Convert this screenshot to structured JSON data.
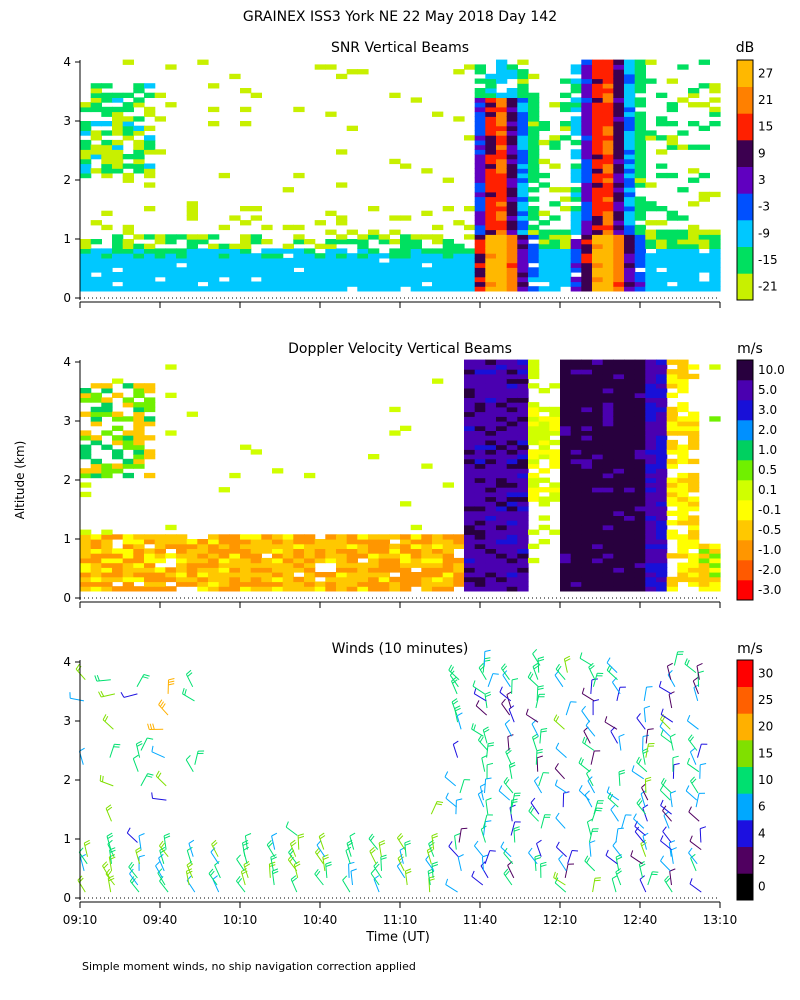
{
  "figure": {
    "title": "GRAINEX ISS3 York NE  22 May 2018 Day 142",
    "ylabel": "Altitude (km)",
    "xlabel": "Time (UT)",
    "footnote": "Simple moment winds, no ship navigation correction applied"
  },
  "colors": {
    "snr": [
      "#c8f000",
      "#00e060",
      "#00c8ff",
      "#0050ff",
      "#6000c0",
      "#3c0050",
      "#ff2000",
      "#ff8000",
      "#ffb800"
    ],
    "vel": [
      "#ff0000",
      "#ff5a00",
      "#ff9600",
      "#ffc800",
      "#ffff00",
      "#d0ff00",
      "#70f000",
      "#00d060",
      "#0090ff",
      "#1810d8",
      "#4a00b0",
      "#28003e"
    ],
    "wind": [
      "#000000",
      "#500060",
      "#1c10e0",
      "#00a8ff",
      "#00e070",
      "#80e000",
      "#ffb000",
      "#ff6000",
      "#ff0000"
    ]
  },
  "chart_data": [
    {
      "type": "heatmap",
      "title": "SNR Vertical Beams",
      "unit": "dB",
      "x_range": [
        "09:10",
        "13:10"
      ],
      "ylim": [
        0,
        4
      ],
      "yticks": [
        "0",
        "1",
        "2",
        "3",
        "4"
      ],
      "colorbar_labels": [
        "-21",
        "-15",
        "-9",
        "-3",
        "3",
        "9",
        "15",
        "21",
        "27"
      ],
      "features": [
        {
          "t_start": "09:10",
          "t_end": "13:10",
          "z_bottom": 0.1,
          "z_top": 0.8,
          "level": "-9 to -3"
        },
        {
          "t_start": "09:10",
          "t_end": "13:10",
          "z_bottom": 0.8,
          "z_top": 1.0,
          "level": "-21 to -15"
        },
        {
          "t_start": "11:35",
          "t_end": "11:55",
          "z_bottom": 0.2,
          "z_top": 3.6,
          "level": "3 to 21"
        },
        {
          "t_start": "12:15",
          "t_end": "12:30",
          "z_bottom": 0.2,
          "z_top": 4.0,
          "level": "9 to 21"
        }
      ]
    },
    {
      "type": "heatmap",
      "title": "Doppler Velocity Vertical Beams",
      "unit": "m/s",
      "x_range": [
        "09:10",
        "13:10"
      ],
      "ylim": [
        0,
        4
      ],
      "yticks": [
        "0",
        "1",
        "2",
        "3",
        "4"
      ],
      "colorbar_labels": [
        "-3.0",
        "-2.0",
        "-1.0",
        "-0.5",
        "-0.1",
        "0.1",
        "0.5",
        "1.0",
        "2.0",
        "3.0",
        "5.0",
        "10.0"
      ],
      "features": [
        {
          "t_start": "09:10",
          "t_end": "11:40",
          "z_bottom": 0.1,
          "z_top": 1.0,
          "level": "-1.0 to -0.1"
        },
        {
          "t_start": "11:40",
          "t_end": "11:55",
          "z_bottom": 0.2,
          "z_top": 4.0,
          "level": "3.0 to 5.0"
        },
        {
          "t_start": "12:10",
          "t_end": "12:30",
          "z_bottom": 0.2,
          "z_top": 4.0,
          "level": "5.0 to 10.0"
        }
      ]
    },
    {
      "type": "scatter",
      "title": "Winds (10 minutes)",
      "unit": "m/s",
      "x_range": [
        "09:10",
        "13:10"
      ],
      "xticks": [
        "09:10",
        "09:40",
        "10:10",
        "10:40",
        "11:10",
        "11:40",
        "12:10",
        "12:40",
        "13:10"
      ],
      "ylim": [
        0,
        4
      ],
      "yticks": [
        "0",
        "1",
        "2",
        "3",
        "4"
      ],
      "colorbar_labels": [
        "0",
        "2",
        "4",
        "6",
        "10",
        "15",
        "20",
        "25",
        "30"
      ]
    }
  ]
}
